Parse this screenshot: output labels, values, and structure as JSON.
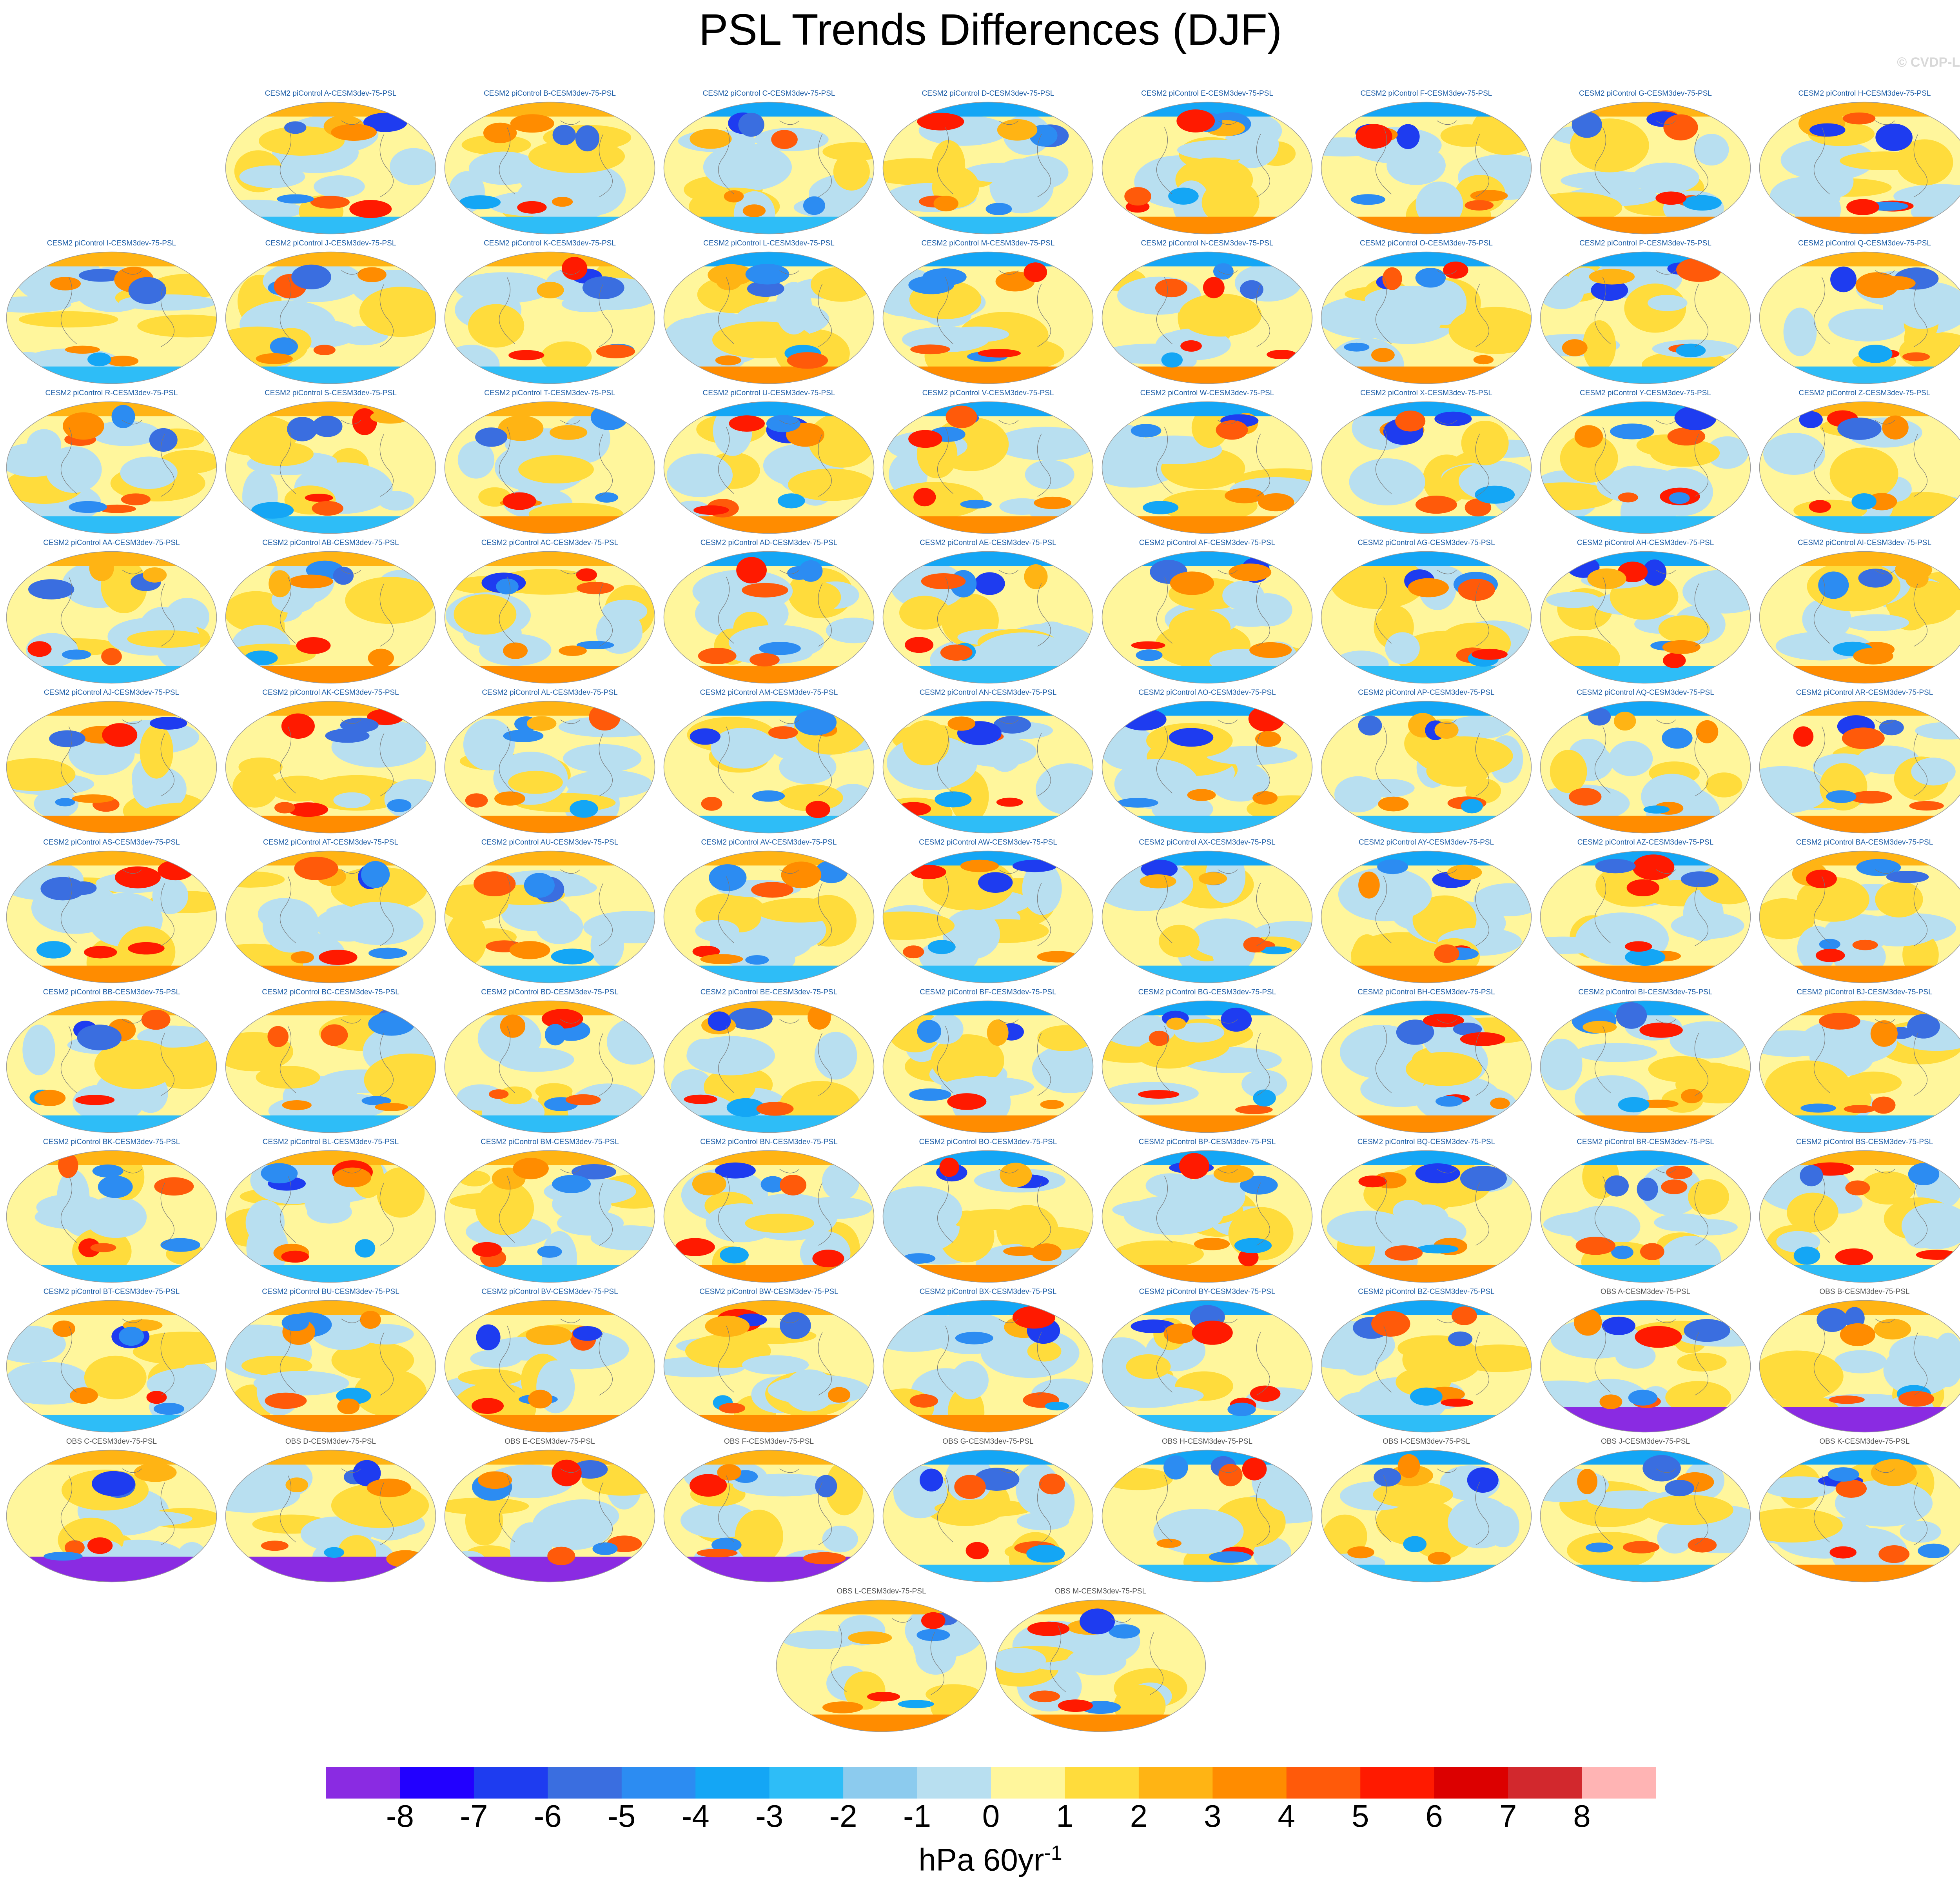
{
  "title": "PSL Trends Differences (DJF)",
  "credit": "© CVDP-LE",
  "units": {
    "base": "hPa 60yr",
    "exponent": "-1"
  },
  "colorbar": {
    "ticks": [
      "-8",
      "-7",
      "-6",
      "-5",
      "-4",
      "-3",
      "-2",
      "-1",
      "0",
      "1",
      "2",
      "3",
      "4",
      "5",
      "6",
      "7",
      "8"
    ],
    "colors": [
      "#8a2be2",
      "#2200ff",
      "#1e3cf0",
      "#3a6ee0",
      "#2c8cf2",
      "#14a6f5",
      "#2ebdf7",
      "#8ccbee",
      "#b8dff0",
      "#fff69c",
      "#ffdc3c",
      "#ffb414",
      "#ff8c00",
      "#ff5a0a",
      "#ff1a00",
      "#dc0000",
      "#d2282d",
      "#ffb4b4"
    ]
  },
  "chart_data": {
    "type": "heatmap",
    "projection": "global map panels",
    "panels": [
      {
        "label": "CESM2 piControl A-CESM3dev-75-PSL",
        "group": "model"
      },
      {
        "label": "CESM2 piControl B-CESM3dev-75-PSL",
        "group": "model"
      },
      {
        "label": "CESM2 piControl C-CESM3dev-75-PSL",
        "group": "model"
      },
      {
        "label": "CESM2 piControl D-CESM3dev-75-PSL",
        "group": "model"
      },
      {
        "label": "CESM2 piControl E-CESM3dev-75-PSL",
        "group": "model"
      },
      {
        "label": "CESM2 piControl F-CESM3dev-75-PSL",
        "group": "model"
      },
      {
        "label": "CESM2 piControl G-CESM3dev-75-PSL",
        "group": "model"
      },
      {
        "label": "CESM2 piControl H-CESM3dev-75-PSL",
        "group": "model"
      },
      {
        "label": "CESM2 piControl I-CESM3dev-75-PSL",
        "group": "model"
      },
      {
        "label": "CESM2 piControl J-CESM3dev-75-PSL",
        "group": "model"
      },
      {
        "label": "CESM2 piControl K-CESM3dev-75-PSL",
        "group": "model"
      },
      {
        "label": "CESM2 piControl L-CESM3dev-75-PSL",
        "group": "model"
      },
      {
        "label": "CESM2 piControl M-CESM3dev-75-PSL",
        "group": "model"
      },
      {
        "label": "CESM2 piControl N-CESM3dev-75-PSL",
        "group": "model"
      },
      {
        "label": "CESM2 piControl O-CESM3dev-75-PSL",
        "group": "model"
      },
      {
        "label": "CESM2 piControl P-CESM3dev-75-PSL",
        "group": "model"
      },
      {
        "label": "CESM2 piControl Q-CESM3dev-75-PSL",
        "group": "model"
      },
      {
        "label": "CESM2 piControl R-CESM3dev-75-PSL",
        "group": "model"
      },
      {
        "label": "CESM2 piControl S-CESM3dev-75-PSL",
        "group": "model"
      },
      {
        "label": "CESM2 piControl T-CESM3dev-75-PSL",
        "group": "model"
      },
      {
        "label": "CESM2 piControl U-CESM3dev-75-PSL",
        "group": "model"
      },
      {
        "label": "CESM2 piControl V-CESM3dev-75-PSL",
        "group": "model"
      },
      {
        "label": "CESM2 piControl W-CESM3dev-75-PSL",
        "group": "model"
      },
      {
        "label": "CESM2 piControl X-CESM3dev-75-PSL",
        "group": "model"
      },
      {
        "label": "CESM2 piControl Y-CESM3dev-75-PSL",
        "group": "model"
      },
      {
        "label": "CESM2 piControl Z-CESM3dev-75-PSL",
        "group": "model"
      },
      {
        "label": "CESM2 piControl AA-CESM3dev-75-PSL",
        "group": "model"
      },
      {
        "label": "CESM2 piControl AB-CESM3dev-75-PSL",
        "group": "model"
      },
      {
        "label": "CESM2 piControl AC-CESM3dev-75-PSL",
        "group": "model"
      },
      {
        "label": "CESM2 piControl AD-CESM3dev-75-PSL",
        "group": "model"
      },
      {
        "label": "CESM2 piControl AE-CESM3dev-75-PSL",
        "group": "model"
      },
      {
        "label": "CESM2 piControl AF-CESM3dev-75-PSL",
        "group": "model"
      },
      {
        "label": "CESM2 piControl AG-CESM3dev-75-PSL",
        "group": "model"
      },
      {
        "label": "CESM2 piControl AH-CESM3dev-75-PSL",
        "group": "model"
      },
      {
        "label": "CESM2 piControl AI-CESM3dev-75-PSL",
        "group": "model"
      },
      {
        "label": "CESM2 piControl AJ-CESM3dev-75-PSL",
        "group": "model"
      },
      {
        "label": "CESM2 piControl AK-CESM3dev-75-PSL",
        "group": "model"
      },
      {
        "label": "CESM2 piControl AL-CESM3dev-75-PSL",
        "group": "model"
      },
      {
        "label": "CESM2 piControl AM-CESM3dev-75-PSL",
        "group": "model"
      },
      {
        "label": "CESM2 piControl AN-CESM3dev-75-PSL",
        "group": "model"
      },
      {
        "label": "CESM2 piControl AO-CESM3dev-75-PSL",
        "group": "model"
      },
      {
        "label": "CESM2 piControl AP-CESM3dev-75-PSL",
        "group": "model"
      },
      {
        "label": "CESM2 piControl AQ-CESM3dev-75-PSL",
        "group": "model"
      },
      {
        "label": "CESM2 piControl AR-CESM3dev-75-PSL",
        "group": "model"
      },
      {
        "label": "CESM2 piControl AS-CESM3dev-75-PSL",
        "group": "model"
      },
      {
        "label": "CESM2 piControl AT-CESM3dev-75-PSL",
        "group": "model"
      },
      {
        "label": "CESM2 piControl AU-CESM3dev-75-PSL",
        "group": "model"
      },
      {
        "label": "CESM2 piControl AV-CESM3dev-75-PSL",
        "group": "model"
      },
      {
        "label": "CESM2 piControl AW-CESM3dev-75-PSL",
        "group": "model"
      },
      {
        "label": "CESM2 piControl AX-CESM3dev-75-PSL",
        "group": "model"
      },
      {
        "label": "CESM2 piControl AY-CESM3dev-75-PSL",
        "group": "model"
      },
      {
        "label": "CESM2 piControl AZ-CESM3dev-75-PSL",
        "group": "model"
      },
      {
        "label": "CESM2 piControl BA-CESM3dev-75-PSL",
        "group": "model"
      },
      {
        "label": "CESM2 piControl BB-CESM3dev-75-PSL",
        "group": "model"
      },
      {
        "label": "CESM2 piControl BC-CESM3dev-75-PSL",
        "group": "model"
      },
      {
        "label": "CESM2 piControl BD-CESM3dev-75-PSL",
        "group": "model"
      },
      {
        "label": "CESM2 piControl BE-CESM3dev-75-PSL",
        "group": "model"
      },
      {
        "label": "CESM2 piControl BF-CESM3dev-75-PSL",
        "group": "model"
      },
      {
        "label": "CESM2 piControl BG-CESM3dev-75-PSL",
        "group": "model"
      },
      {
        "label": "CESM2 piControl BH-CESM3dev-75-PSL",
        "group": "model"
      },
      {
        "label": "CESM2 piControl BI-CESM3dev-75-PSL",
        "group": "model"
      },
      {
        "label": "CESM2 piControl BJ-CESM3dev-75-PSL",
        "group": "model"
      },
      {
        "label": "CESM2 piControl BK-CESM3dev-75-PSL",
        "group": "model"
      },
      {
        "label": "CESM2 piControl BL-CESM3dev-75-PSL",
        "group": "model"
      },
      {
        "label": "CESM2 piControl BM-CESM3dev-75-PSL",
        "group": "model"
      },
      {
        "label": "CESM2 piControl BN-CESM3dev-75-PSL",
        "group": "model"
      },
      {
        "label": "CESM2 piControl BO-CESM3dev-75-PSL",
        "group": "model"
      },
      {
        "label": "CESM2 piControl BP-CESM3dev-75-PSL",
        "group": "model"
      },
      {
        "label": "CESM2 piControl BQ-CESM3dev-75-PSL",
        "group": "model"
      },
      {
        "label": "CESM2 piControl BR-CESM3dev-75-PSL",
        "group": "model"
      },
      {
        "label": "CESM2 piControl BS-CESM3dev-75-PSL",
        "group": "model"
      },
      {
        "label": "CESM2 piControl BT-CESM3dev-75-PSL",
        "group": "model"
      },
      {
        "label": "CESM2 piControl BU-CESM3dev-75-PSL",
        "group": "model"
      },
      {
        "label": "CESM2 piControl BV-CESM3dev-75-PSL",
        "group": "model"
      },
      {
        "label": "CESM2 piControl BW-CESM3dev-75-PSL",
        "group": "model"
      },
      {
        "label": "CESM2 piControl BX-CESM3dev-75-PSL",
        "group": "model"
      },
      {
        "label": "CESM2 piControl BY-CESM3dev-75-PSL",
        "group": "model"
      },
      {
        "label": "CESM2 piControl BZ-CESM3dev-75-PSL",
        "group": "model"
      },
      {
        "label": "OBS A-CESM3dev-75-PSL",
        "group": "obs"
      },
      {
        "label": "OBS B-CESM3dev-75-PSL",
        "group": "obs"
      },
      {
        "label": "OBS C-CESM3dev-75-PSL",
        "group": "obs"
      },
      {
        "label": "OBS D-CESM3dev-75-PSL",
        "group": "obs"
      },
      {
        "label": "OBS E-CESM3dev-75-PSL",
        "group": "obs"
      },
      {
        "label": "OBS F-CESM3dev-75-PSL",
        "group": "obs"
      },
      {
        "label": "OBS G-CESM3dev-75-PSL",
        "group": "obs"
      },
      {
        "label": "OBS H-CESM3dev-75-PSL",
        "group": "obs"
      },
      {
        "label": "OBS I-CESM3dev-75-PSL",
        "group": "obs"
      },
      {
        "label": "OBS J-CESM3dev-75-PSL",
        "group": "obs"
      },
      {
        "label": "OBS K-CESM3dev-75-PSL",
        "group": "obs"
      },
      {
        "label": "OBS L-CESM3dev-75-PSL",
        "group": "obs"
      },
      {
        "label": "OBS M-CESM3dev-75-PSL",
        "group": "obs"
      }
    ],
    "zlim": [
      -8,
      8
    ]
  }
}
